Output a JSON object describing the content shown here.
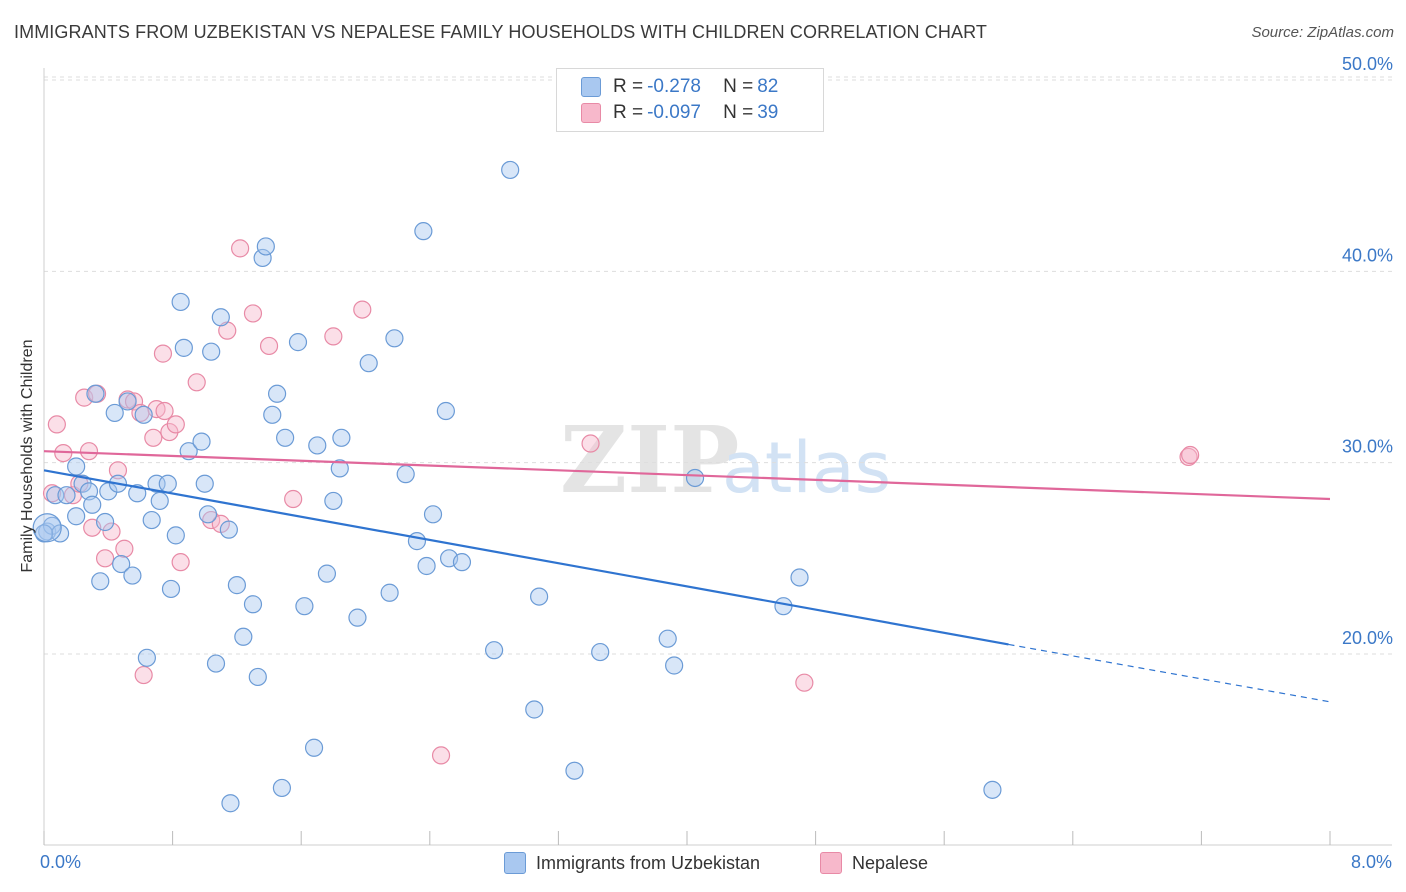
{
  "header": {
    "title": "IMMIGRANTS FROM UZBEKISTAN VS NEPALESE FAMILY HOUSEHOLDS WITH CHILDREN CORRELATION CHART",
    "source": "Source: ZipAtlas.com"
  },
  "watermark": {
    "zip": "ZIP",
    "atlas": "atlas"
  },
  "legend_top": [
    {
      "r_label": "R = ",
      "r_value": "-0.278",
      "n_label": "N = ",
      "n_value": "82"
    },
    {
      "r_label": "R = ",
      "r_value": "-0.097",
      "n_label": "N = ",
      "n_value": "39"
    }
  ],
  "colors": {
    "blue_fill": "#a9c8f0",
    "blue_stroke": "#6b9bd6",
    "blue_line": "#2f74d0",
    "pink_fill": "#f7b8cb",
    "pink_stroke": "#e88aa6",
    "pink_line": "#e0679a",
    "tick_text": "#3b78c7",
    "grid": "#dddddd"
  },
  "chart_data": {
    "type": "scatter",
    "title": "IMMIGRANTS FROM UZBEKISTAN VS NEPALESE FAMILY HOUSEHOLDS WITH CHILDREN CORRELATION CHART",
    "xlabel": "",
    "ylabel": "Family Households with Children",
    "xlim": [
      0,
      8
    ],
    "ylim": [
      10,
      52
    ],
    "x_tick_labels": [
      "0.0%",
      "8.0%"
    ],
    "y_ticks": [
      20,
      30,
      40,
      50
    ],
    "y_tick_labels": [
      "20.0%",
      "30.0%",
      "40.0%",
      "50.0%"
    ],
    "grid": true,
    "legend_position": "bottom",
    "series": [
      {
        "name": "Immigrants from Uzbekistan",
        "color": "blue",
        "points": [
          [
            0.02,
            26.4
          ],
          [
            0.05,
            26.7
          ],
          [
            0.07,
            28.3
          ],
          [
            0.1,
            26.3
          ],
          [
            0.14,
            28.3
          ],
          [
            0.2,
            27.2
          ],
          [
            0.2,
            29.8
          ],
          [
            0.24,
            28.9
          ],
          [
            0.28,
            28.5
          ],
          [
            0.3,
            27.8
          ],
          [
            0.32,
            33.6
          ],
          [
            0.35,
            23.8
          ],
          [
            0.4,
            28.5
          ],
          [
            0.44,
            32.6
          ],
          [
            0.46,
            28.9
          ],
          [
            0.48,
            24.7
          ],
          [
            0.52,
            33.2
          ],
          [
            0.55,
            24.1
          ],
          [
            0.58,
            28.4
          ],
          [
            0.62,
            32.5
          ],
          [
            0.64,
            19.8
          ],
          [
            0.67,
            27.0
          ],
          [
            0.7,
            28.9
          ],
          [
            0.72,
            28.0
          ],
          [
            0.77,
            28.9
          ],
          [
            0.79,
            23.4
          ],
          [
            0.82,
            26.2
          ],
          [
            0.85,
            38.4
          ],
          [
            0.87,
            36.0
          ],
          [
            0.9,
            30.6
          ],
          [
            0.98,
            31.1
          ],
          [
            1.0,
            28.9
          ],
          [
            1.02,
            27.3
          ],
          [
            1.04,
            35.8
          ],
          [
            1.07,
            19.5
          ],
          [
            1.1,
            37.6
          ],
          [
            1.15,
            26.5
          ],
          [
            1.16,
            12.2
          ],
          [
            1.2,
            23.6
          ],
          [
            1.24,
            20.9
          ],
          [
            1.3,
            22.6
          ],
          [
            1.33,
            18.8
          ],
          [
            1.36,
            40.7
          ],
          [
            1.38,
            41.3
          ],
          [
            1.42,
            32.5
          ],
          [
            1.45,
            33.6
          ],
          [
            1.48,
            13.0
          ],
          [
            1.5,
            31.3
          ],
          [
            1.58,
            36.3
          ],
          [
            1.62,
            22.5
          ],
          [
            1.68,
            15.1
          ],
          [
            1.7,
            30.9
          ],
          [
            1.76,
            24.2
          ],
          [
            1.8,
            28.0
          ],
          [
            1.84,
            29.7
          ],
          [
            1.85,
            31.3
          ],
          [
            1.95,
            21.9
          ],
          [
            2.02,
            35.2
          ],
          [
            2.15,
            23.2
          ],
          [
            2.18,
            36.5
          ],
          [
            2.25,
            29.4
          ],
          [
            2.32,
            25.9
          ],
          [
            2.36,
            42.1
          ],
          [
            2.38,
            24.6
          ],
          [
            2.42,
            27.3
          ],
          [
            2.5,
            32.7
          ],
          [
            2.52,
            25.0
          ],
          [
            2.6,
            24.8
          ],
          [
            2.8,
            20.2
          ],
          [
            2.9,
            45.3
          ],
          [
            3.05,
            17.1
          ],
          [
            3.08,
            23.0
          ],
          [
            3.3,
            13.9
          ],
          [
            3.46,
            20.1
          ],
          [
            3.88,
            20.8
          ],
          [
            3.92,
            19.4
          ],
          [
            4.05,
            29.2
          ],
          [
            4.6,
            22.5
          ],
          [
            4.7,
            24.0
          ],
          [
            5.9,
            12.9
          ],
          [
            0.0,
            26.3
          ],
          [
            0.38,
            26.9
          ]
        ]
      },
      {
        "name": "Nepalese",
        "color": "pink",
        "points": [
          [
            0.05,
            28.4
          ],
          [
            0.08,
            32.0
          ],
          [
            0.12,
            30.5
          ],
          [
            0.18,
            28.3
          ],
          [
            0.22,
            28.9
          ],
          [
            0.25,
            33.4
          ],
          [
            0.28,
            30.6
          ],
          [
            0.3,
            26.6
          ],
          [
            0.33,
            33.6
          ],
          [
            0.38,
            25.0
          ],
          [
            0.42,
            26.4
          ],
          [
            0.46,
            29.6
          ],
          [
            0.5,
            25.5
          ],
          [
            0.52,
            33.3
          ],
          [
            0.56,
            33.2
          ],
          [
            0.6,
            32.6
          ],
          [
            0.62,
            18.9
          ],
          [
            0.68,
            31.3
          ],
          [
            0.7,
            32.8
          ],
          [
            0.74,
            35.7
          ],
          [
            0.75,
            32.7
          ],
          [
            0.78,
            31.6
          ],
          [
            0.82,
            32.0
          ],
          [
            0.85,
            24.8
          ],
          [
            0.95,
            34.2
          ],
          [
            1.04,
            27.0
          ],
          [
            1.1,
            26.8
          ],
          [
            1.14,
            36.9
          ],
          [
            1.22,
            41.2
          ],
          [
            1.3,
            37.8
          ],
          [
            1.4,
            36.1
          ],
          [
            1.55,
            28.1
          ],
          [
            1.8,
            36.6
          ],
          [
            1.98,
            38.0
          ],
          [
            2.47,
            14.7
          ],
          [
            3.4,
            31.0
          ],
          [
            4.73,
            18.5
          ],
          [
            7.12,
            30.3
          ],
          [
            7.13,
            30.4
          ]
        ]
      }
    ],
    "trend_lines": [
      {
        "series": "Immigrants from Uzbekistan",
        "x0": 0.0,
        "y0": 29.6,
        "x1": 6.0,
        "y1": 20.5,
        "dashed_to_x": 8.0,
        "dashed_to_y": 17.5
      },
      {
        "series": "Nepalese",
        "x0": 0.0,
        "y0": 30.6,
        "x1": 8.0,
        "y1": 28.1
      }
    ]
  },
  "legend_bottom": [
    {
      "label": "Immigrants from Uzbekistan"
    },
    {
      "label": "Nepalese"
    }
  ]
}
